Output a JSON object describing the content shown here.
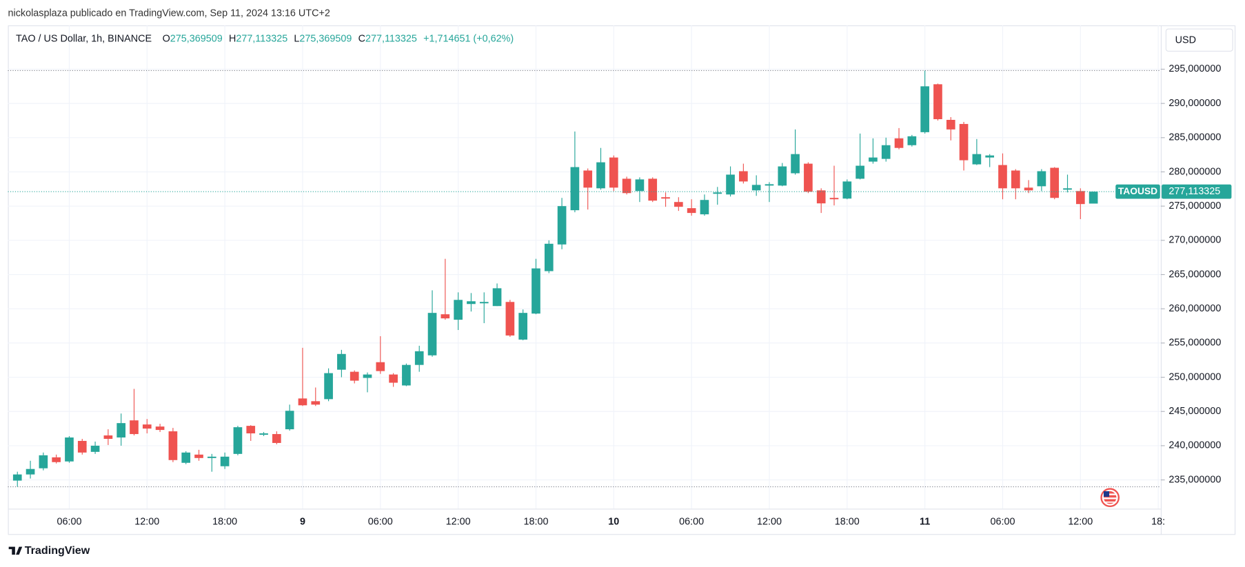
{
  "header": {
    "byline": "nickolasplaza publicado en TradingView.com, Sep 11, 2024 13:16 UTC+2",
    "symbol": "TAO / US Dollar, 1h, BINANCE",
    "ohlc": [
      {
        "key": "O",
        "value": "275,369509"
      },
      {
        "key": "H",
        "value": "277,113325"
      },
      {
        "key": "L",
        "value": "275,369509"
      },
      {
        "key": "C",
        "value": "277,113325"
      }
    ],
    "change": "+1,714651 (+0,62%)",
    "currency": "USD"
  },
  "footer": {
    "brand": "TradingView"
  },
  "chart_data": {
    "type": "candlestick",
    "up_color": "#26a69a",
    "down_color": "#ef5350",
    "grid": true,
    "xlim": [
      -0.73,
      88.2
    ],
    "ylim": [
      230.8,
      301.4
    ],
    "xticks": [
      {
        "value": 4,
        "label": "06:00"
      },
      {
        "value": 10,
        "label": "12:00"
      },
      {
        "value": 16,
        "label": "18:00"
      },
      {
        "value": 22,
        "label": "9"
      },
      {
        "value": 28,
        "label": "06:00"
      },
      {
        "value": 34,
        "label": "12:00"
      },
      {
        "value": 40,
        "label": "18:00"
      },
      {
        "value": 46,
        "label": "10"
      },
      {
        "value": 52,
        "label": "06:00"
      },
      {
        "value": 58,
        "label": "12:00"
      },
      {
        "value": 64,
        "label": "18:00"
      },
      {
        "value": 70,
        "label": "11"
      },
      {
        "value": 76,
        "label": "06:00"
      },
      {
        "value": 82,
        "label": "12:00"
      },
      {
        "value": 88,
        "label": "18:"
      }
    ],
    "yticks": [
      {
        "value": 235,
        "label": "235,000000"
      },
      {
        "value": 240,
        "label": "240,000000"
      },
      {
        "value": 245,
        "label": "245,000000"
      },
      {
        "value": 250,
        "label": "250,000000"
      },
      {
        "value": 255,
        "label": "255,000000"
      },
      {
        "value": 260,
        "label": "260,000000"
      },
      {
        "value": 265,
        "label": "265,000000"
      },
      {
        "value": 270,
        "label": "270,000000"
      },
      {
        "value": 275,
        "label": "275,000000"
      },
      {
        "value": 280,
        "label": "280,000000"
      },
      {
        "value": 285,
        "label": "285,000000"
      },
      {
        "value": 290,
        "label": "290,000000"
      },
      {
        "value": 295,
        "label": "295,000000"
      }
    ],
    "range_lines": [
      294.8,
      234.0
    ],
    "price_label": {
      "name": "TAOUSD",
      "value": 277.113325,
      "label": "277,113325"
    },
    "open": [
      234.9,
      235.8,
      236.7,
      238.3,
      237.7,
      240.7,
      239.1,
      241.5,
      241.2,
      243.7,
      243.1,
      242.8,
      242.1,
      237.5,
      238.7,
      238.2,
      237.0,
      238.8,
      242.9,
      241.6,
      241.7,
      242.4,
      246.9,
      246.5,
      246.8,
      251.1,
      250.8,
      249.9,
      252.2,
      250.4,
      248.8,
      251.8,
      253.2,
      259.2,
      258.4,
      260.7,
      260.8,
      260.4,
      261.0,
      255.5,
      259.3,
      265.5,
      269.4,
      274.4,
      280.2,
      277.6,
      282.1,
      279.0,
      277.2,
      279.0,
      276.3,
      275.6,
      274.7,
      273.8,
      276.8,
      276.7,
      280.1,
      277.3,
      278.0,
      278.0,
      279.8,
      281.2,
      277.3,
      276.2,
      276.1,
      279.0,
      281.5,
      281.9,
      284.9,
      283.9,
      285.8,
      292.8,
      287.6,
      287.0,
      281.1,
      282.1,
      281.0,
      280.2,
      277.7,
      277.9,
      280.6,
      277.4,
      277.2,
      275.369509
    ],
    "high": [
      236.2,
      237.8,
      239.0,
      238.7,
      241.4,
      241.0,
      240.6,
      242.4,
      244.7,
      248.3,
      243.9,
      243.2,
      242.6,
      239.2,
      239.4,
      238.8,
      239.0,
      242.9,
      243.0,
      242.0,
      242.1,
      246.0,
      254.3,
      248.5,
      251.3,
      254.0,
      251.0,
      250.7,
      256.0,
      250.6,
      252.0,
      254.6,
      262.7,
      267.3,
      262.4,
      262.3,
      262.4,
      263.7,
      261.3,
      259.9,
      267.3,
      270.0,
      276.2,
      285.9,
      280.5,
      283.5,
      282.4,
      279.3,
      279.2,
      279.2,
      277.0,
      276.3,
      276.0,
      276.7,
      277.8,
      280.8,
      281.2,
      279.5,
      278.5,
      281.3,
      286.2,
      281.4,
      277.6,
      280.9,
      278.9,
      285.6,
      284.9,
      285.0,
      286.4,
      285.4,
      294.8,
      292.9,
      288.0,
      287.3,
      284.8,
      282.6,
      282.7,
      280.4,
      278.8,
      280.4,
      280.7,
      279.6,
      277.6,
      277.113325
    ],
    "low": [
      234.0,
      235.2,
      236.4,
      237.4,
      237.5,
      238.7,
      238.8,
      240.1,
      240.0,
      241.5,
      241.8,
      242.0,
      237.6,
      237.3,
      237.8,
      236.2,
      236.6,
      238.6,
      240.7,
      241.4,
      240.2,
      242.2,
      245.8,
      245.8,
      246.5,
      250.0,
      249.1,
      247.8,
      250.5,
      248.6,
      248.7,
      250.8,
      253.0,
      258.4,
      256.9,
      259.6,
      257.9,
      260.4,
      255.9,
      255.4,
      259.2,
      265.2,
      268.7,
      274.1,
      274.5,
      277.4,
      277.2,
      276.7,
      275.6,
      275.6,
      274.9,
      274.3,
      273.6,
      273.6,
      275.2,
      276.4,
      278.3,
      276.5,
      275.6,
      277.9,
      279.6,
      276.9,
      274.0,
      275.1,
      276.0,
      278.9,
      281.2,
      281.5,
      283.3,
      283.7,
      285.6,
      287.5,
      284.6,
      280.2,
      281.0,
      280.7,
      276.0,
      276.0,
      276.9,
      277.2,
      276.0,
      277.0,
      273.1,
      275.369509
    ],
    "close": [
      235.8,
      236.6,
      238.6,
      237.6,
      241.2,
      239.0,
      240.0,
      241.0,
      243.3,
      241.7,
      242.5,
      242.3,
      237.9,
      239.0,
      238.2,
      238.4,
      238.4,
      242.7,
      241.8,
      241.8,
      240.4,
      245.1,
      245.9,
      246.0,
      250.6,
      253.4,
      249.5,
      250.4,
      250.9,
      249.2,
      251.8,
      253.8,
      259.4,
      258.6,
      261.3,
      261.1,
      261.0,
      263.0,
      256.1,
      259.4,
      265.9,
      269.5,
      275.0,
      280.7,
      277.7,
      281.4,
      277.7,
      276.9,
      278.9,
      275.8,
      276.1,
      274.9,
      274.0,
      275.9,
      277.0,
      279.6,
      278.6,
      278.1,
      278.2,
      280.8,
      282.6,
      277.1,
      275.4,
      276.0,
      278.6,
      280.9,
      282.1,
      283.9,
      283.5,
      285.2,
      292.5,
      287.7,
      286.2,
      281.7,
      282.6,
      282.4,
      277.6,
      277.6,
      277.3,
      280.1,
      276.2,
      277.6,
      275.3,
      277.113325
    ]
  }
}
